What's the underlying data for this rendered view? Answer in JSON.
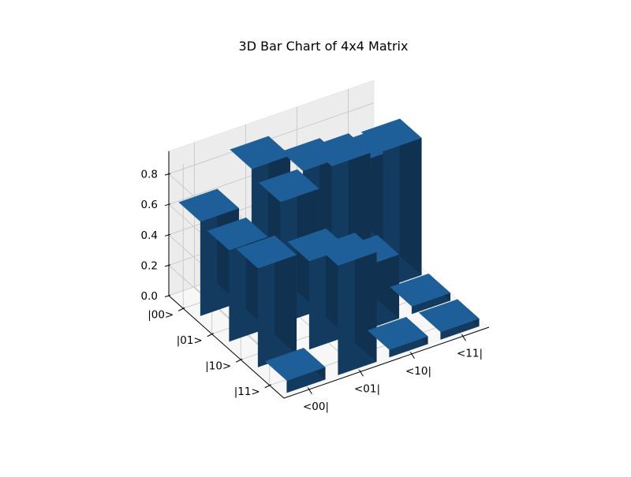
{
  "chart_data": {
    "type": "bar3d",
    "title": "3D Bar Chart of 4x4 Matrix",
    "x_categories": [
      "|00>",
      "|01>",
      "|10>",
      "|11>"
    ],
    "y_categories": [
      "<00|",
      "<01|",
      "<10|",
      "<11|"
    ],
    "z_ticks": [
      "0.0",
      "0.2",
      "0.4",
      "0.6",
      "0.8"
    ],
    "zlim": [
      0,
      0.95
    ],
    "grid": true,
    "bar_color": "#1f5f99",
    "bars": [
      {
        "row": "|00>",
        "col": "<00|",
        "value": 0.62
      },
      {
        "row": "|00>",
        "col": "<01|",
        "value": 0.85
      },
      {
        "row": "|00>",
        "col": "<10|",
        "value": 0.72
      },
      {
        "row": "|00>",
        "col": "<11|",
        "value": 0.65
      },
      {
        "row": "|01>",
        "col": "<00|",
        "value": 0.6
      },
      {
        "row": "|01>",
        "col": "<01|",
        "value": 0.8
      },
      {
        "row": "|01>",
        "col": "<10|",
        "value": 0.92
      },
      {
        "row": "|01>",
        "col": "<11|",
        "value": 0.9
      },
      {
        "row": "|10>",
        "col": "<00|",
        "value": 0.65
      },
      {
        "row": "|10>",
        "col": "<01|",
        "value": 0.58
      },
      {
        "row": "|10>",
        "col": "<10|",
        "value": 0.42
      },
      {
        "row": "|10>",
        "col": "<11|",
        "value": 0.05
      },
      {
        "row": "|11>",
        "col": "<00|",
        "value": 0.08
      },
      {
        "row": "|11>",
        "col": "<01|",
        "value": 0.72
      },
      {
        "row": "|11>",
        "col": "<10|",
        "value": 0.05
      },
      {
        "row": "|11>",
        "col": "<11|",
        "value": 0.05
      }
    ]
  }
}
